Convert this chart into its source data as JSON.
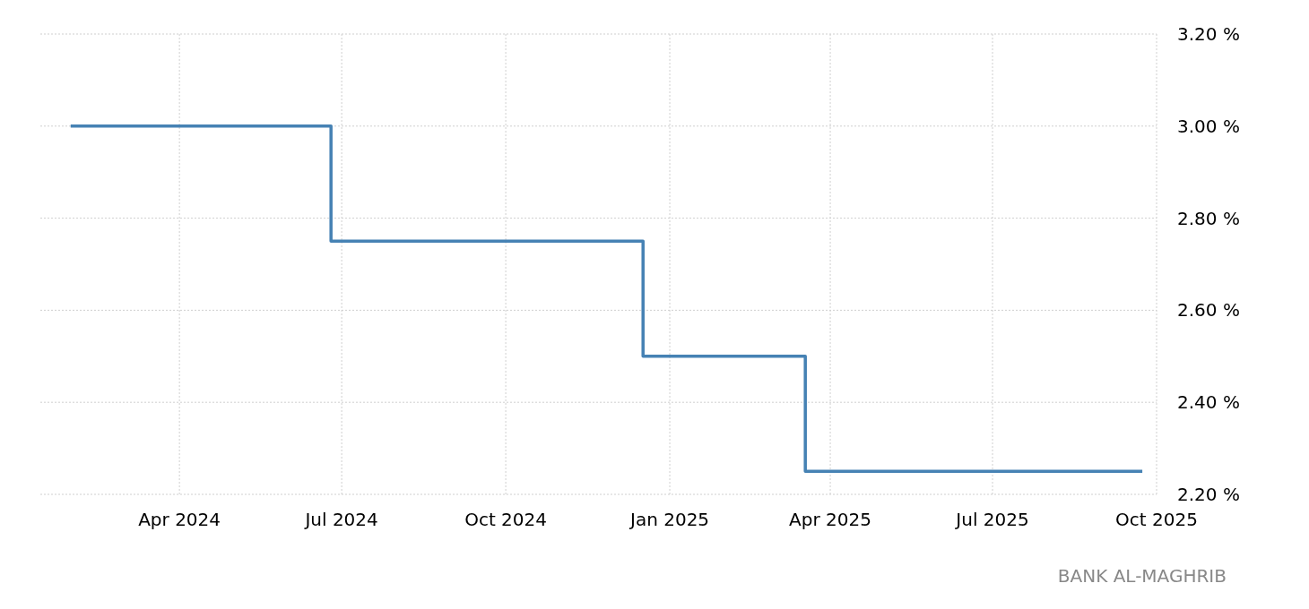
{
  "chart_data": {
    "type": "step",
    "x": [
      "2024-01-31",
      "2024-06-25",
      "2024-12-17",
      "2025-03-18",
      "2025-09-23"
    ],
    "series": [
      {
        "color": "#4682b4",
        "values": [
          3.0,
          2.75,
          2.5,
          2.25,
          2.25
        ]
      }
    ],
    "xlim": [
      "2024-01-14",
      "2025-10-01"
    ],
    "xticks": [
      {
        "value": "2024-04-01",
        "label": "Apr 2024"
      },
      {
        "value": "2024-07-01",
        "label": "Jul 2024"
      },
      {
        "value": "2024-10-01",
        "label": "Oct 2024"
      },
      {
        "value": "2025-01-01",
        "label": "Jan 2025"
      },
      {
        "value": "2025-04-01",
        "label": "Apr 2025"
      },
      {
        "value": "2025-07-01",
        "label": "Jul 2025"
      },
      {
        "value": "2025-10-01",
        "label": "Oct 2025"
      }
    ],
    "ylim": [
      2.2,
      3.2
    ],
    "yticks": [
      {
        "value": 2.2,
        "label": "2.20 %"
      },
      {
        "value": 2.4,
        "label": "2.40 %"
      },
      {
        "value": 2.6,
        "label": "2.60 %"
      },
      {
        "value": 2.8,
        "label": "2.80 %"
      },
      {
        "value": 3.0,
        "label": "3.00 %"
      },
      {
        "value": 3.2,
        "label": "3.20 %"
      }
    ],
    "grid": true,
    "line_style": "solid",
    "marker": "none",
    "annotations": [
      "BANK AL-MAGHRIB"
    ]
  }
}
